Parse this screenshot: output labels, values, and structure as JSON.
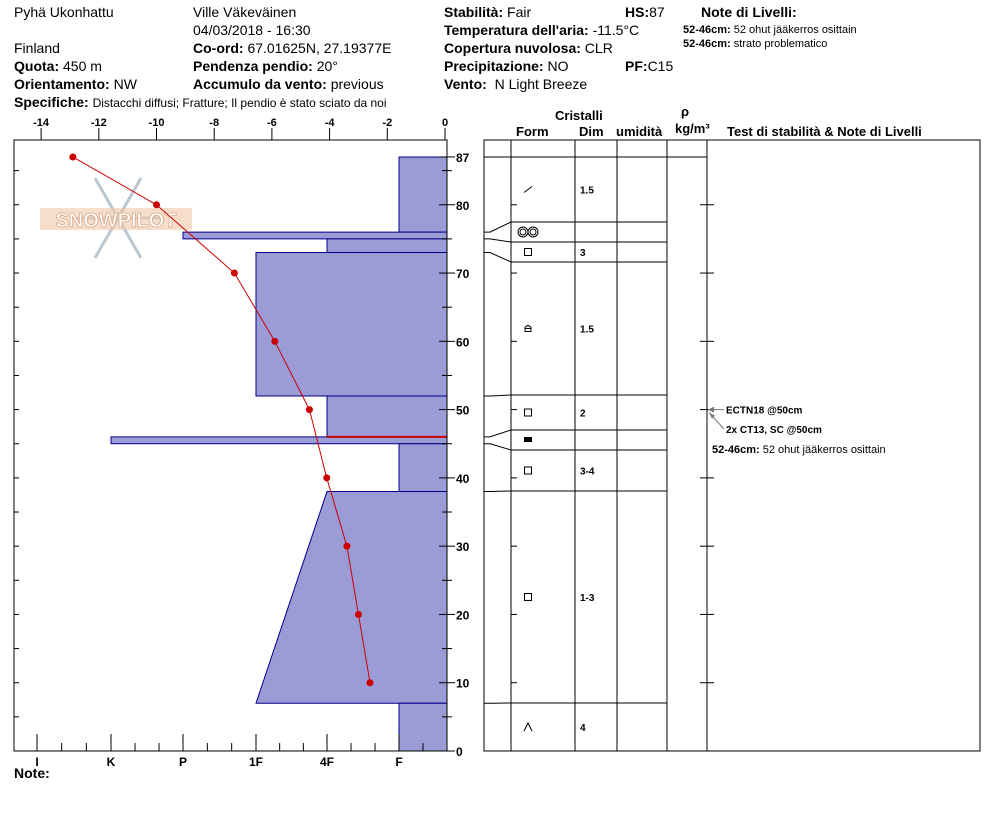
{
  "header": {
    "location": "Pyhä Ukonhattu",
    "country": "Finland",
    "observer": "Ville Väkeväinen",
    "datetime": "04/03/2018 - 16:30",
    "elevation_label": "Quota:",
    "elevation": "450 m",
    "aspect_label": "Orientamento:",
    "aspect": "NW",
    "coord_label": "Co-ord:",
    "coord": "67.01625N, 27.19377E",
    "slope_label": "Pendenza pendio:",
    "slope": "20°",
    "wind_loading_label": "Accumulo da vento:",
    "wind_loading": "previous",
    "specifics_label": "Specifiche:",
    "specifics": "Distacchi diffusi;  Fratture;  Il pendio è stato sciato da noi",
    "stability_label": "Stabilità:",
    "stability": "Fair",
    "air_temp_label": "Temperatura dell'aria:",
    "air_temp": "-11.5°C",
    "pf_label": "PF:",
    "pf": "C15",
    "sky_label": "Copertura nuvolosa:",
    "sky": "CLR",
    "precip_label": "Precipitazione:",
    "precip": "NO",
    "wind_label": "Vento:",
    "wind": "N Light Breeze",
    "hs_label": "HS:",
    "hs": "87",
    "layer_notes_title": "Note di Livelli:",
    "layer_notes": [
      {
        "range": "52-46cm:",
        "text": "52 ohut jääkerros osittain"
      },
      {
        "range": "52-46cm:",
        "text": "strato problematico"
      }
    ]
  },
  "table_headers": {
    "crystals": "Cristalli",
    "form": "Form",
    "size": "Dim",
    "moisture": "umidità",
    "density_symbol": "ρ",
    "density_unit": "kg/m³",
    "tests": "Test di stabilità & Note di Livelli"
  },
  "footer": {
    "note_label": "Note:"
  },
  "watermark": "SNOWPILOT",
  "colors": {
    "hardness_fill": "#9b9bd6",
    "hardness_stroke": "#00008b",
    "temp_line": "#cc0000",
    "critical_layer": "#cc0000"
  },
  "chart_data": {
    "type": "snow-profile",
    "temp_axis": {
      "ticks": [
        "-14",
        "-12",
        "-10",
        "-8",
        "-6",
        "-4",
        "-2",
        "0"
      ],
      "range": [
        -14,
        0
      ]
    },
    "hardness_axis": {
      "ticks": [
        "I",
        "K",
        "P",
        "1F",
        "4F",
        "F"
      ]
    },
    "height_axis": {
      "ticks": [
        "0",
        "10",
        "20",
        "30",
        "40",
        "50",
        "60",
        "70",
        "80",
        "87"
      ],
      "range": [
        0,
        87
      ]
    },
    "temperature_profile": [
      {
        "height": 87,
        "temp": -12.9
      },
      {
        "height": 80,
        "temp": -10.0
      },
      {
        "height": 70,
        "temp": -7.3
      },
      {
        "height": 60,
        "temp": -5.9
      },
      {
        "height": 50,
        "temp": -4.7
      },
      {
        "height": 40,
        "temp": -4.1
      },
      {
        "height": 30,
        "temp": -3.4
      },
      {
        "height": 20,
        "temp": -3.0
      },
      {
        "height": 10,
        "temp": -2.6
      }
    ],
    "layers": [
      {
        "top": 87,
        "bottom": 76,
        "hardness_top": "F",
        "hardness_bottom": "F",
        "form": "fragments",
        "size": "1.5"
      },
      {
        "top": 76,
        "bottom": 75,
        "hardness_top": "P",
        "hardness_bottom": "P",
        "form": "melt-clusters",
        "size": ""
      },
      {
        "top": 75,
        "bottom": 73,
        "hardness_top": "4F",
        "hardness_bottom": "4F",
        "form": "facets",
        "size": "3"
      },
      {
        "top": 73,
        "bottom": 52,
        "hardness_top": "1F",
        "hardness_bottom": "1F",
        "form": "rounding-facets",
        "size": "1.5"
      },
      {
        "top": 52,
        "bottom": 46,
        "hardness_top": "4F",
        "hardness_bottom": "4F",
        "form": "facets",
        "size": "2"
      },
      {
        "top": 46,
        "bottom": 45,
        "hardness_top": "K",
        "hardness_bottom": "K",
        "form": "ice",
        "size": ""
      },
      {
        "top": 45,
        "bottom": 38,
        "hardness_top": "F",
        "hardness_bottom": "F",
        "form": "facets",
        "size": "3-4"
      },
      {
        "top": 38,
        "bottom": 7,
        "hardness_top": "4F",
        "hardness_bottom": "1F",
        "form": "facets",
        "size": "1-3"
      },
      {
        "top": 7,
        "bottom": 0,
        "hardness_top": "F",
        "hardness_bottom": "F",
        "form": "depth-hoar",
        "size": "4"
      }
    ],
    "critical_layer_height": 46,
    "tests": [
      {
        "height": 50,
        "text": "ECTN18 @50cm"
      },
      {
        "height": 50,
        "text": "2x CT13, SC @50cm"
      }
    ],
    "test_layer_note": {
      "range": "52-46cm:",
      "text": "52 ohut jääkerros osittain"
    }
  }
}
